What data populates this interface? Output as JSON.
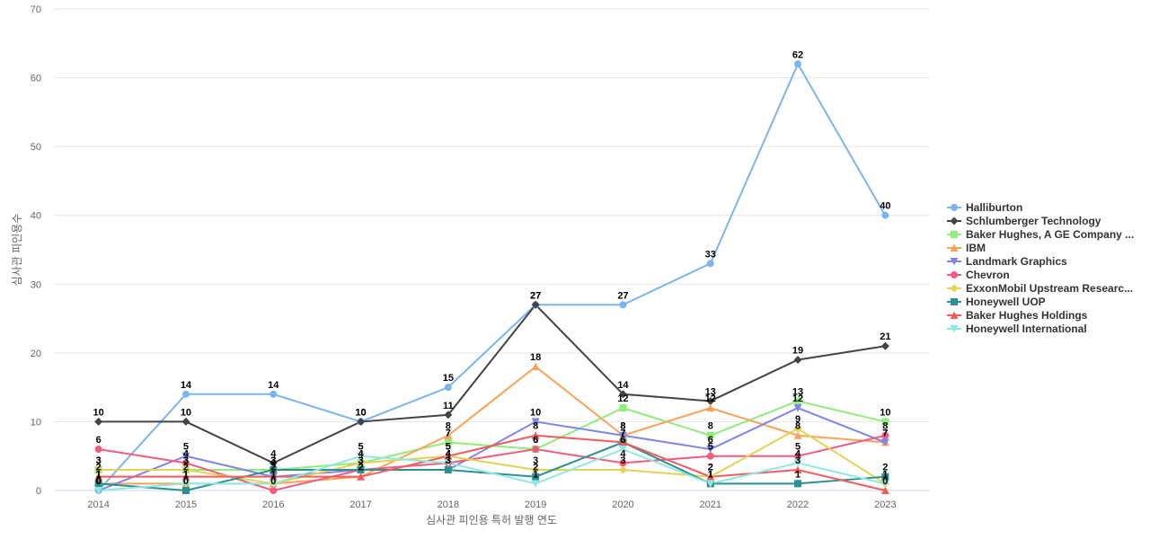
{
  "chart_data": {
    "type": "line",
    "title": "",
    "xlabel": "심사관 피인용 특허 발행 연도",
    "ylabel": "심사관 피인용수",
    "categories": [
      "2014",
      "2015",
      "2016",
      "2017",
      "2018",
      "2019",
      "2020",
      "2021",
      "2022",
      "2023"
    ],
    "ylim": [
      0,
      70
    ],
    "yticks": [
      0,
      10,
      20,
      30,
      40,
      50,
      60,
      70
    ],
    "grid": true,
    "legend_position": "right",
    "series": [
      {
        "name": "Halliburton",
        "color": "#7cb5ec",
        "marker": "circle",
        "values": [
          0,
          14,
          14,
          10,
          15,
          27,
          27,
          33,
          62,
          40
        ]
      },
      {
        "name": "Schlumberger Technology",
        "color": "#434348",
        "marker": "diamond",
        "values": [
          10,
          10,
          4,
          10,
          11,
          27,
          14,
          13,
          19,
          21
        ]
      },
      {
        "name": "Baker Hughes, A GE Company ...",
        "color": "#90ed7d",
        "marker": "square",
        "values": [
          3,
          3,
          3,
          4,
          7,
          6,
          12,
          8,
          13,
          10
        ]
      },
      {
        "name": "IBM",
        "color": "#f7a35c",
        "marker": "triangle",
        "values": [
          1,
          1,
          1,
          2,
          8,
          18,
          8,
          12,
          8,
          7
        ]
      },
      {
        "name": "Landmark Graphics",
        "color": "#8085e9",
        "marker": "triangle-down",
        "values": [
          0,
          5,
          2,
          3,
          3,
          10,
          8,
          6,
          12,
          7
        ]
      },
      {
        "name": "Chevron",
        "color": "#f15c80",
        "marker": "circle",
        "values": [
          6,
          4,
          0,
          3,
          4,
          6,
          4,
          5,
          5,
          8
        ]
      },
      {
        "name": "ExxonMobil Upstream Researc...",
        "color": "#e4d354",
        "marker": "diamond",
        "values": [
          3,
          3,
          1,
          4,
          5,
          3,
          3,
          2,
          9,
          1
        ]
      },
      {
        "name": "Honeywell UOP",
        "color": "#2b908f",
        "marker": "square",
        "values": [
          1,
          0,
          3,
          3,
          3,
          2,
          7,
          1,
          1,
          2
        ]
      },
      {
        "name": "Baker Hughes Holdings",
        "color": "#f45b5b",
        "marker": "triangle",
        "values": [
          2,
          2,
          2,
          2,
          5,
          8,
          7,
          2,
          3,
          0
        ]
      },
      {
        "name": "Honeywell International",
        "color": "#91e8e1",
        "marker": "triangle-down",
        "values": [
          0,
          1,
          1,
          5,
          4,
          1,
          6,
          1,
          4,
          1
        ]
      }
    ]
  }
}
